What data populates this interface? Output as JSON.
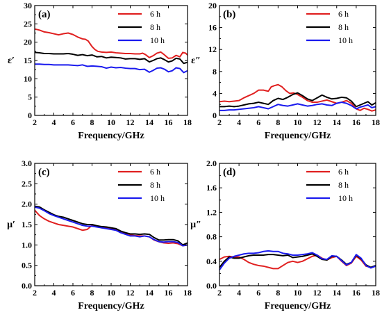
{
  "chart_data": [
    {
      "type": "line",
      "panel_label": "(a)",
      "xlabel": "Frequency/GHz",
      "ylabel": "ε′",
      "xlim": [
        2,
        18
      ],
      "ylim": [
        0,
        30
      ],
      "xticks": [
        2,
        4,
        6,
        8,
        10,
        12,
        14,
        16,
        18
      ],
      "yticks": [
        0,
        5,
        10,
        15,
        20,
        25,
        30
      ],
      "legend_position": "top-right",
      "series": [
        {
          "name": "6 h",
          "color": "#e02020",
          "x": [
            2,
            2.5,
            3,
            3.5,
            4,
            4.5,
            5,
            5.5,
            6,
            6.5,
            7,
            7.3,
            7.6,
            8,
            8.3,
            8.6,
            9,
            9.5,
            10,
            10.5,
            11,
            11.5,
            12,
            12.5,
            13,
            13.3,
            13.6,
            14,
            14.4,
            14.8,
            15.2,
            15.6,
            16,
            16.4,
            16.8,
            17.2,
            17.5,
            17.8,
            18
          ],
          "y": [
            23.6,
            23.3,
            22.8,
            22.6,
            22.3,
            22.0,
            22.3,
            22.5,
            22.1,
            21.4,
            20.9,
            20.8,
            20.3,
            18.8,
            18.0,
            17.5,
            17.3,
            17.2,
            17.3,
            17.1,
            17.0,
            16.9,
            16.9,
            16.8,
            16.8,
            17.0,
            16.6,
            15.8,
            16.3,
            17.0,
            17.3,
            16.5,
            15.6,
            15.7,
            16.4,
            16.0,
            17.2,
            17.0,
            16.5
          ]
        },
        {
          "name": "8 h",
          "color": "#000000",
          "x": [
            2,
            2.5,
            3,
            3.5,
            4,
            4.5,
            5,
            5.5,
            6,
            6.5,
            7,
            7.5,
            8,
            8.5,
            9,
            9.5,
            10,
            10.5,
            11,
            11.5,
            12,
            12.5,
            13,
            13.5,
            14,
            14.4,
            14.8,
            15.2,
            15.6,
            16,
            16.4,
            16.8,
            17.2,
            17.6,
            18
          ],
          "y": [
            17.2,
            17.1,
            16.9,
            16.9,
            16.8,
            16.8,
            16.8,
            16.9,
            16.7,
            16.4,
            16.6,
            16.3,
            16.5,
            16.0,
            16.1,
            15.7,
            15.9,
            15.8,
            15.7,
            15.4,
            15.5,
            15.5,
            15.3,
            15.5,
            14.6,
            15.0,
            15.5,
            15.7,
            15.2,
            14.6,
            14.9,
            15.6,
            15.4,
            14.2,
            14.5
          ]
        },
        {
          "name": "10 h",
          "color": "#1a1aee",
          "x": [
            2,
            2.5,
            3,
            3.5,
            4,
            4.5,
            5,
            5.5,
            6,
            6.5,
            7,
            7.5,
            8,
            8.5,
            9,
            9.5,
            10,
            10.5,
            11,
            11.5,
            12,
            12.5,
            13,
            13.5,
            14,
            14.4,
            14.8,
            15.2,
            15.6,
            16,
            16.4,
            16.8,
            17.2,
            17.6,
            18
          ],
          "y": [
            14.0,
            14.0,
            13.9,
            13.9,
            13.8,
            13.8,
            13.8,
            13.8,
            13.7,
            13.6,
            13.8,
            13.4,
            13.5,
            13.4,
            13.3,
            12.9,
            13.2,
            13.0,
            13.1,
            12.9,
            12.8,
            12.8,
            12.5,
            12.6,
            11.8,
            12.3,
            12.9,
            13.0,
            12.6,
            11.9,
            12.2,
            13.0,
            12.8,
            11.7,
            12.2
          ]
        }
      ]
    },
    {
      "type": "line",
      "panel_label": "(b)",
      "xlabel": "Frequency/GHz",
      "ylabel": "ε″",
      "xlim": [
        2,
        18
      ],
      "ylim": [
        0,
        20
      ],
      "xticks": [
        2,
        4,
        6,
        8,
        10,
        12,
        14,
        16,
        18
      ],
      "yticks": [
        0,
        4,
        8,
        12,
        16,
        20
      ],
      "legend_position": "top-right",
      "series": [
        {
          "name": "6 h",
          "color": "#e02020",
          "x": [
            2,
            2.5,
            3,
            3.5,
            4,
            4.5,
            5,
            5.5,
            6,
            6.5,
            7,
            7.3,
            7.6,
            8,
            8.4,
            8.8,
            9.2,
            9.6,
            10,
            10.5,
            11,
            11.5,
            12,
            12.5,
            13,
            13.5,
            14,
            14.5,
            15,
            15.5,
            16,
            16.4,
            16.8,
            17.2,
            17.6,
            18
          ],
          "y": [
            2.5,
            2.6,
            2.5,
            2.6,
            2.7,
            3.2,
            3.6,
            4.0,
            4.6,
            4.6,
            4.4,
            5.2,
            5.4,
            5.6,
            5.2,
            4.5,
            4.0,
            4.1,
            3.8,
            3.3,
            2.7,
            2.4,
            2.4,
            2.6,
            2.8,
            2.5,
            2.2,
            2.4,
            2.7,
            2.2,
            1.2,
            0.9,
            1.3,
            1.1,
            0.8,
            1.0
          ]
        },
        {
          "name": "8 h",
          "color": "#000000",
          "x": [
            2,
            2.5,
            3,
            3.5,
            4,
            4.5,
            5,
            5.5,
            6,
            6.5,
            7,
            7.5,
            8,
            8.5,
            9,
            9.5,
            10,
            10.5,
            11,
            11.5,
            12,
            12.5,
            13,
            13.5,
            14,
            14.5,
            15,
            15.5,
            16,
            16.4,
            16.8,
            17.2,
            17.6,
            18
          ],
          "y": [
            1.6,
            1.6,
            1.7,
            1.6,
            1.7,
            1.9,
            2.1,
            2.2,
            2.4,
            2.2,
            2.0,
            2.7,
            3.1,
            2.9,
            3.3,
            3.8,
            4.1,
            3.6,
            3.0,
            2.7,
            3.2,
            3.7,
            3.3,
            3.0,
            3.1,
            3.3,
            3.2,
            2.6,
            1.6,
            1.9,
            2.2,
            2.5,
            1.9,
            2.3
          ]
        },
        {
          "name": "10 h",
          "color": "#1a1aee",
          "x": [
            2,
            2.5,
            3,
            3.5,
            4,
            4.5,
            5,
            5.5,
            6,
            6.5,
            7,
            7.5,
            8,
            8.5,
            9,
            9.5,
            10,
            10.5,
            11,
            11.5,
            12,
            12.5,
            13,
            13.5,
            14,
            14.5,
            15,
            15.5,
            16,
            16.4,
            16.8,
            17.2,
            17.6,
            18
          ],
          "y": [
            0.9,
            0.9,
            1.0,
            1.0,
            1.1,
            1.2,
            1.3,
            1.4,
            1.6,
            1.4,
            1.2,
            1.6,
            2.0,
            1.8,
            1.7,
            1.9,
            2.1,
            1.9,
            1.7,
            1.8,
            2.0,
            2.1,
            1.9,
            1.8,
            2.2,
            2.4,
            2.2,
            1.8,
            1.2,
            1.5,
            1.7,
            1.9,
            1.4,
            1.6
          ]
        }
      ]
    },
    {
      "type": "line",
      "panel_label": "(c)",
      "xlabel": "Frequency/GHz",
      "ylabel": "μ′",
      "xlim": [
        2,
        18
      ],
      "ylim": [
        0,
        3.0
      ],
      "xticks": [
        2,
        4,
        6,
        8,
        10,
        12,
        14,
        16,
        18
      ],
      "yticks": [
        0.0,
        0.5,
        1.0,
        1.5,
        2.0,
        2.5,
        3.0
      ],
      "legend_position": "top-right",
      "series": [
        {
          "name": "6 h",
          "color": "#e02020",
          "x": [
            2,
            2.5,
            3,
            3.5,
            4,
            4.5,
            5,
            5.5,
            6,
            6.5,
            7,
            7.5,
            8,
            8.5,
            9,
            9.5,
            10,
            10.5,
            11,
            11.5,
            12,
            12.5,
            13,
            13.5,
            14,
            14.5,
            15,
            15.5,
            16,
            16.5,
            17,
            17.5,
            18
          ],
          "y": [
            1.85,
            1.72,
            1.64,
            1.58,
            1.54,
            1.5,
            1.48,
            1.46,
            1.44,
            1.4,
            1.36,
            1.38,
            1.48,
            1.46,
            1.42,
            1.42,
            1.4,
            1.38,
            1.32,
            1.27,
            1.24,
            1.23,
            1.22,
            1.22,
            1.2,
            1.12,
            1.08,
            1.05,
            1.04,
            1.05,
            1.03,
            0.98,
            1.0
          ]
        },
        {
          "name": "8 h",
          "color": "#000000",
          "x": [
            2,
            2.5,
            3,
            3.5,
            4,
            4.5,
            5,
            5.5,
            6,
            6.5,
            7,
            7.5,
            8,
            8.5,
            9,
            9.5,
            10,
            10.5,
            11,
            11.5,
            12,
            12.5,
            13,
            13.5,
            14,
            14.5,
            15,
            15.5,
            16,
            16.5,
            17,
            17.5,
            18
          ],
          "y": [
            1.95,
            1.93,
            1.86,
            1.8,
            1.74,
            1.7,
            1.68,
            1.64,
            1.6,
            1.56,
            1.52,
            1.5,
            1.5,
            1.47,
            1.45,
            1.44,
            1.42,
            1.4,
            1.34,
            1.3,
            1.27,
            1.27,
            1.26,
            1.27,
            1.26,
            1.18,
            1.12,
            1.12,
            1.13,
            1.13,
            1.1,
            1.0,
            1.05
          ]
        },
        {
          "name": "10 h",
          "color": "#1a1aee",
          "x": [
            2,
            2.5,
            3,
            3.5,
            4,
            4.5,
            5,
            5.5,
            6,
            6.5,
            7,
            7.5,
            8,
            8.5,
            9,
            9.5,
            10,
            10.5,
            11,
            11.5,
            12,
            12.5,
            13,
            13.5,
            14,
            14.5,
            15,
            15.5,
            16,
            16.5,
            17,
            17.5,
            18
          ],
          "y": [
            1.93,
            1.9,
            1.84,
            1.77,
            1.72,
            1.68,
            1.64,
            1.6,
            1.56,
            1.52,
            1.48,
            1.46,
            1.46,
            1.44,
            1.42,
            1.4,
            1.38,
            1.36,
            1.3,
            1.26,
            1.22,
            1.22,
            1.2,
            1.22,
            1.2,
            1.13,
            1.08,
            1.07,
            1.08,
            1.08,
            1.06,
            0.98,
            1.0
          ]
        }
      ]
    },
    {
      "type": "line",
      "panel_label": "(d)",
      "xlabel": "Frequency/GHz",
      "ylabel": "μ″",
      "xlim": [
        2,
        18
      ],
      "ylim": [
        0,
        2.0
      ],
      "xticks": [
        2,
        4,
        6,
        8,
        10,
        12,
        14,
        16,
        18
      ],
      "yticks": [
        0.0,
        0.4,
        0.8,
        1.2,
        1.6,
        2.0
      ],
      "legend_position": "top-right",
      "series": [
        {
          "name": "6 h",
          "color": "#e02020",
          "x": [
            2,
            2.5,
            3,
            3.5,
            4,
            4.5,
            5,
            5.5,
            6,
            6.5,
            7,
            7.5,
            8,
            8.5,
            9,
            9.5,
            10,
            10.5,
            11,
            11.5,
            12,
            12.5,
            13,
            13.5,
            14,
            14.5,
            15,
            15.5,
            16,
            16.5,
            17,
            17.5,
            18
          ],
          "y": [
            0.43,
            0.47,
            0.48,
            0.47,
            0.47,
            0.43,
            0.38,
            0.35,
            0.33,
            0.32,
            0.3,
            0.28,
            0.28,
            0.33,
            0.38,
            0.4,
            0.38,
            0.4,
            0.44,
            0.48,
            0.5,
            0.45,
            0.42,
            0.46,
            0.48,
            0.4,
            0.33,
            0.37,
            0.48,
            0.42,
            0.32,
            0.3,
            0.32
          ]
        },
        {
          "name": "8 h",
          "color": "#000000",
          "x": [
            2,
            2.5,
            3,
            3.5,
            4,
            4.5,
            5,
            5.5,
            6,
            6.5,
            7,
            7.5,
            8,
            8.5,
            9,
            9.5,
            10,
            10.5,
            11,
            11.5,
            12,
            12.5,
            13,
            13.5,
            14,
            14.5,
            15,
            15.5,
            16,
            16.5,
            17,
            17.5,
            18
          ],
          "y": [
            0.3,
            0.4,
            0.47,
            0.45,
            0.45,
            0.47,
            0.49,
            0.5,
            0.5,
            0.5,
            0.51,
            0.51,
            0.5,
            0.49,
            0.5,
            0.46,
            0.47,
            0.48,
            0.5,
            0.52,
            0.48,
            0.43,
            0.42,
            0.48,
            0.48,
            0.42,
            0.35,
            0.38,
            0.5,
            0.44,
            0.34,
            0.3,
            0.33
          ]
        },
        {
          "name": "10 h",
          "color": "#1a1aee",
          "x": [
            2,
            2.5,
            3,
            3.5,
            4,
            4.5,
            5,
            5.5,
            6,
            6.5,
            7,
            7.5,
            8,
            8.5,
            9,
            9.5,
            10,
            10.5,
            11,
            11.5,
            12,
            12.5,
            13,
            13.5,
            14,
            14.5,
            15,
            15.5,
            16,
            16.5,
            17,
            17.5,
            18
          ],
          "y": [
            0.26,
            0.37,
            0.45,
            0.48,
            0.5,
            0.52,
            0.53,
            0.53,
            0.54,
            0.56,
            0.57,
            0.56,
            0.56,
            0.53,
            0.52,
            0.5,
            0.5,
            0.51,
            0.52,
            0.54,
            0.5,
            0.44,
            0.43,
            0.49,
            0.48,
            0.41,
            0.34,
            0.38,
            0.51,
            0.45,
            0.33,
            0.29,
            0.32
          ]
        }
      ]
    }
  ]
}
